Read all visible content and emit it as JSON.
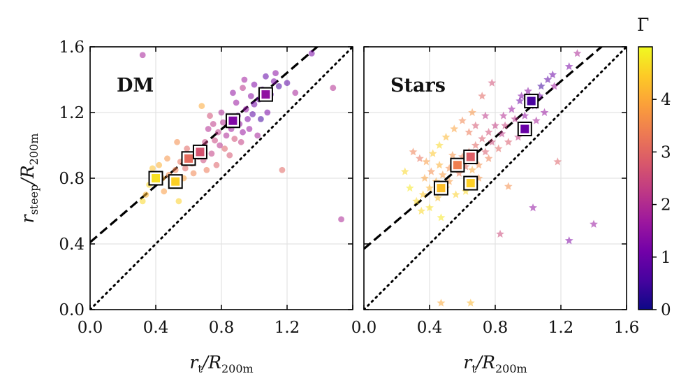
{
  "colors": {
    "plasma": [
      "#0d0887",
      "#46039f",
      "#7201a8",
      "#9c179e",
      "#bd3786",
      "#d8576b",
      "#ed7953",
      "#fb9f3a",
      "#fdca26",
      "#f0f921"
    ]
  },
  "colorbar": {
    "title": "Γ",
    "range": [
      0,
      5
    ],
    "ticks": [
      "0",
      "1",
      "2",
      "3",
      "4"
    ]
  },
  "x_axis": {
    "label": "r_t/R_200m",
    "ticks": [
      "0.0",
      "0.4",
      "0.8",
      "1.2",
      "1.6"
    ]
  },
  "y_axis": {
    "label": "r_steep/R_200m",
    "ticks": [
      "0.0",
      "0.4",
      "0.8",
      "1.2",
      "1.6"
    ]
  },
  "chart_data": [
    {
      "type": "scatter",
      "panel_label": "DM",
      "marker": "circle",
      "xlim": [
        0,
        1.6
      ],
      "ylim": [
        0,
        1.6
      ],
      "grid": true,
      "fit_line": {
        "intercept": 0.41,
        "slope": 0.86,
        "style": "dashed"
      },
      "identity_line": {
        "style": "dotted"
      },
      "points": [
        [
          1.12,
          1.39,
          1.2
        ],
        [
          1.05,
          1.34,
          1.0
        ],
        [
          1.15,
          1.36,
          0.6
        ],
        [
          0.95,
          1.22,
          1.5
        ],
        [
          0.9,
          1.18,
          1.2
        ],
        [
          0.85,
          1.12,
          1.8
        ],
        [
          0.78,
          1.08,
          2.2
        ],
        [
          0.98,
          1.3,
          1.4
        ],
        [
          1.2,
          1.38,
          0.8
        ],
        [
          1.35,
          1.56,
          1.2
        ],
        [
          0.32,
          1.55,
          1.8
        ],
        [
          1.48,
          1.35,
          2.0
        ],
        [
          1.53,
          0.55,
          1.9
        ],
        [
          1.17,
          0.85,
          3.0
        ],
        [
          1.25,
          1.32,
          1.8
        ],
        [
          1.08,
          1.2,
          1.2
        ],
        [
          0.93,
          1.08,
          1.6
        ],
        [
          0.88,
          1.04,
          2.6
        ],
        [
          0.82,
          0.98,
          2.9
        ],
        [
          0.76,
          1.03,
          2.4
        ],
        [
          0.72,
          1.1,
          2.0
        ],
        [
          0.7,
          1.02,
          2.4
        ],
        [
          0.65,
          0.98,
          2.2
        ],
        [
          0.6,
          0.94,
          3.0
        ],
        [
          0.55,
          0.9,
          3.2
        ],
        [
          0.52,
          0.85,
          3.4
        ],
        [
          0.48,
          0.82,
          3.6
        ],
        [
          0.44,
          0.8,
          4.0
        ],
        [
          0.4,
          0.78,
          4.4
        ],
        [
          0.36,
          0.76,
          4.6
        ],
        [
          0.34,
          0.7,
          4.2
        ],
        [
          0.32,
          0.66,
          4.6
        ],
        [
          0.45,
          0.72,
          3.8
        ],
        [
          0.5,
          0.77,
          3.5
        ],
        [
          0.58,
          0.86,
          3.0
        ],
        [
          0.62,
          0.89,
          3.1
        ],
        [
          0.66,
          0.93,
          2.8
        ],
        [
          0.69,
          0.91,
          2.5
        ],
        [
          0.74,
          0.95,
          2.3
        ],
        [
          0.79,
          1.0,
          2.1
        ],
        [
          0.83,
          1.06,
          1.9
        ],
        [
          0.86,
          1.1,
          1.7
        ],
        [
          0.91,
          1.13,
          1.5
        ],
        [
          0.96,
          1.16,
          1.3
        ],
        [
          1.0,
          1.25,
          1.1
        ],
        [
          1.03,
          1.28,
          1.0
        ],
        [
          1.1,
          1.31,
          0.9
        ],
        [
          0.97,
          1.1,
          1.6
        ],
        [
          0.81,
          1.14,
          2.0
        ],
        [
          0.73,
          1.18,
          2.6
        ],
        [
          0.68,
          1.24,
          4.0
        ],
        [
          0.63,
          0.83,
          3.5
        ],
        [
          0.57,
          0.8,
          3.9
        ],
        [
          0.54,
          0.66,
          4.5
        ],
        [
          0.42,
          0.88,
          4.1
        ],
        [
          0.38,
          0.86,
          4.3
        ],
        [
          0.47,
          0.92,
          3.7
        ],
        [
          0.77,
          0.88,
          2.9
        ],
        [
          0.85,
          0.94,
          2.7
        ],
        [
          0.92,
          1.02,
          2.3
        ],
        [
          1.02,
          1.06,
          1.8
        ],
        [
          0.89,
          1.26,
          1.6
        ],
        [
          0.8,
          1.2,
          1.9
        ],
        [
          0.75,
          1.13,
          2.2
        ],
        [
          1.0,
          1.37,
          1.3
        ],
        [
          1.07,
          1.42,
          0.9
        ],
        [
          1.13,
          1.44,
          1.4
        ],
        [
          0.94,
          1.4,
          1.7
        ],
        [
          0.87,
          1.32,
          1.5
        ],
        [
          0.71,
          0.85,
          3.3
        ],
        [
          0.59,
          0.98,
          3.0
        ],
        [
          0.53,
          1.02,
          3.6
        ],
        [
          0.99,
          1.19,
          0.8
        ],
        [
          1.04,
          1.16,
          0.5
        ],
        [
          0.93,
          1.35,
          2.1
        ]
      ],
      "binned": [
        {
          "x": 0.4,
          "y": 0.8,
          "g": 4.7
        },
        {
          "x": 0.52,
          "y": 0.78,
          "g": 4.5
        },
        {
          "x": 0.6,
          "y": 0.92,
          "g": 3.1
        },
        {
          "x": 0.67,
          "y": 0.96,
          "g": 2.7
        },
        {
          "x": 0.87,
          "y": 1.15,
          "g": 1.3
        },
        {
          "x": 1.07,
          "y": 1.31,
          "g": 1.5
        }
      ]
    },
    {
      "type": "scatter",
      "panel_label": "Stars",
      "marker": "star",
      "xlim": [
        0,
        1.6
      ],
      "ylim": [
        0,
        1.6
      ],
      "grid": true,
      "fit_line": {
        "intercept": 0.37,
        "slope": 0.85,
        "style": "dashed"
      },
      "identity_line": {
        "style": "dotted"
      },
      "points": [
        [
          1.12,
          1.4,
          0.8
        ],
        [
          1.08,
          1.36,
          0.5
        ],
        [
          1.15,
          1.43,
          1.0
        ],
        [
          1.25,
          1.48,
          1.2
        ],
        [
          1.3,
          1.56,
          1.9
        ],
        [
          1.0,
          1.33,
          1.4
        ],
        [
          0.95,
          1.27,
          1.0
        ],
        [
          0.9,
          1.22,
          1.6
        ],
        [
          0.85,
          1.18,
          2.0
        ],
        [
          0.8,
          1.12,
          2.3
        ],
        [
          0.76,
          1.08,
          2.6
        ],
        [
          0.72,
          1.04,
          2.8
        ],
        [
          0.68,
          1.0,
          3.0
        ],
        [
          0.64,
          0.96,
          3.2
        ],
        [
          0.6,
          0.93,
          3.4
        ],
        [
          0.56,
          0.9,
          3.5
        ],
        [
          0.52,
          0.86,
          3.6
        ],
        [
          0.48,
          0.82,
          3.8
        ],
        [
          0.44,
          0.78,
          4.0
        ],
        [
          0.4,
          0.74,
          4.2
        ],
        [
          0.36,
          0.7,
          4.4
        ],
        [
          0.32,
          0.66,
          4.6
        ],
        [
          0.28,
          0.74,
          4.8
        ],
        [
          0.25,
          0.84,
          4.6
        ],
        [
          0.3,
          0.96,
          3.4
        ],
        [
          0.34,
          0.92,
          3.2
        ],
        [
          0.38,
          0.9,
          3.8
        ],
        [
          0.42,
          0.95,
          4.4
        ],
        [
          0.46,
          1.0,
          4.6
        ],
        [
          0.5,
          1.05,
          4.2
        ],
        [
          0.55,
          1.1,
          3.9
        ],
        [
          0.6,
          1.15,
          3.5
        ],
        [
          0.66,
          1.2,
          3.7
        ],
        [
          0.72,
          1.3,
          3.0
        ],
        [
          0.78,
          1.38,
          2.6
        ],
        [
          0.7,
          0.88,
          3.6
        ],
        [
          0.76,
          0.92,
          3.4
        ],
        [
          0.82,
          0.98,
          3.0
        ],
        [
          0.88,
          1.02,
          2.8
        ],
        [
          0.94,
          1.05,
          2.3
        ],
        [
          1.0,
          1.1,
          2.0
        ],
        [
          1.05,
          1.15,
          1.8
        ],
        [
          1.1,
          1.2,
          1.6
        ],
        [
          1.18,
          0.9,
          2.9
        ],
        [
          0.88,
          0.75,
          3.6
        ],
        [
          0.83,
          0.46,
          2.5
        ],
        [
          1.03,
          0.62,
          1.5
        ],
        [
          1.25,
          0.42,
          1.3
        ],
        [
          1.4,
          0.52,
          1.6
        ],
        [
          0.47,
          0.04,
          4.0
        ],
        [
          0.65,
          0.04,
          4.2
        ],
        [
          0.47,
          0.56,
          4.8
        ],
        [
          0.52,
          0.78,
          3.8
        ],
        [
          0.58,
          0.83,
          3.3
        ],
        [
          0.62,
          0.87,
          3.1
        ],
        [
          0.66,
          0.85,
          4.0
        ],
        [
          0.7,
          0.8,
          3.7
        ],
        [
          0.74,
          0.96,
          2.8
        ],
        [
          0.78,
          1.02,
          2.5
        ],
        [
          0.84,
          1.07,
          2.2
        ],
        [
          0.98,
          1.18,
          1.5
        ],
        [
          1.04,
          1.24,
          1.2
        ],
        [
          1.07,
          1.3,
          1.1
        ],
        [
          0.92,
          1.16,
          2.1
        ],
        [
          0.86,
          1.12,
          2.4
        ],
        [
          0.62,
          0.72,
          4.6
        ],
        [
          0.56,
          0.7,
          4.5
        ],
        [
          0.35,
          0.6,
          4.6
        ],
        [
          0.4,
          0.62,
          4.7
        ],
        [
          0.45,
          0.68,
          4.3
        ],
        [
          0.5,
          0.74,
          4.1
        ],
        [
          0.74,
          1.18,
          2.2
        ],
        [
          0.68,
          1.12,
          2.7
        ],
        [
          0.64,
          1.08,
          3.3
        ],
        [
          0.54,
          0.94,
          3.7
        ],
        [
          0.46,
          0.88,
          4.1
        ],
        [
          0.41,
          0.84,
          3.6
        ],
        [
          0.37,
          0.8,
          3.9
        ],
        [
          1.16,
          1.36,
          1.7
        ],
        [
          0.96,
          1.3,
          1.3
        ]
      ],
      "binned": [
        {
          "x": 0.47,
          "y": 0.74,
          "g": 4.3
        },
        {
          "x": 0.57,
          "y": 0.88,
          "g": 3.4
        },
        {
          "x": 0.65,
          "y": 0.93,
          "g": 2.9
        },
        {
          "x": 0.65,
          "y": 0.77,
          "g": 4.5
        },
        {
          "x": 0.98,
          "y": 1.1,
          "g": 1.0
        },
        {
          "x": 1.02,
          "y": 1.27,
          "g": 0.6
        }
      ]
    }
  ]
}
